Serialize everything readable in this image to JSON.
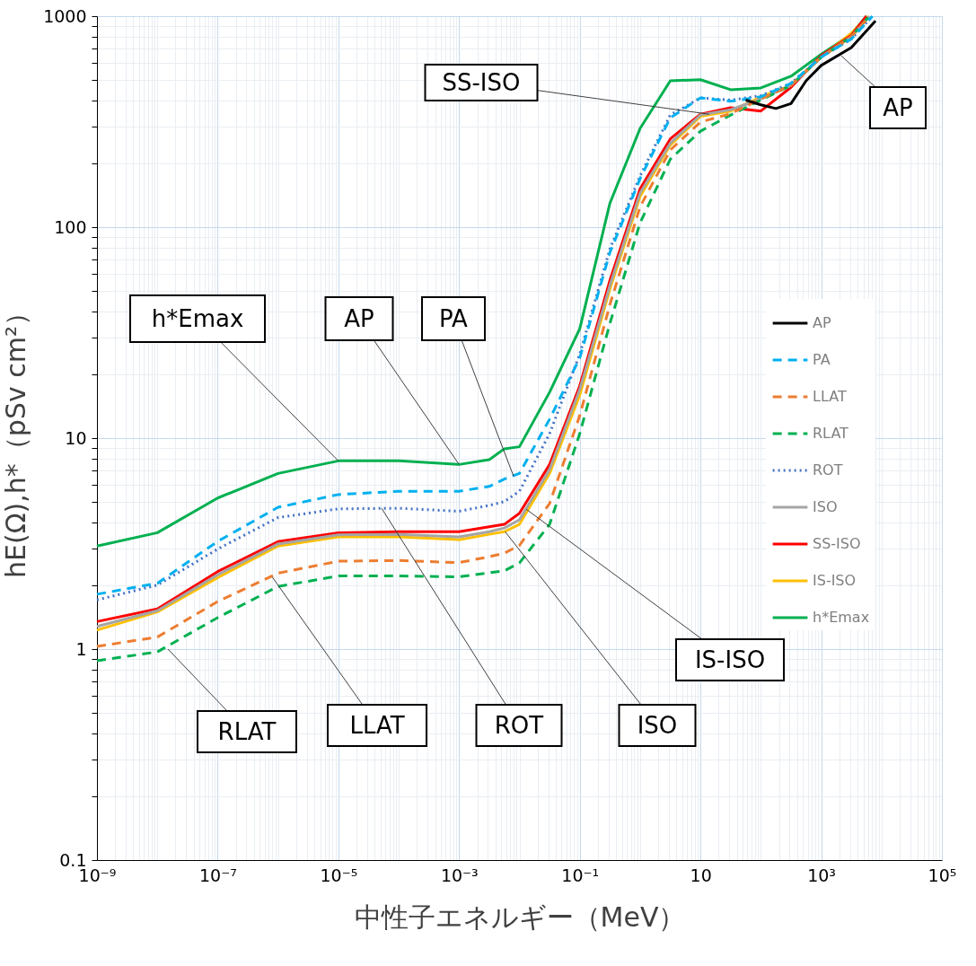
{
  "chart_data": {
    "type": "line",
    "xlabel": "中性子エネルギー（MeV）",
    "ylabel": "hE(Ω),h*（pSv cm²）",
    "log": "xy",
    "grid": true,
    "legend": "right",
    "xlim": [
      1e-09,
      100000
    ],
    "ylim": [
      0.1,
      1000
    ],
    "xticks": [
      {
        "value": 1e-09,
        "label": "10⁻⁹"
      },
      {
        "value": 1e-07,
        "label": "10⁻⁷"
      },
      {
        "value": 1e-05,
        "label": "10⁻⁵"
      },
      {
        "value": 0.001,
        "label": "10⁻³"
      },
      {
        "value": 0.1,
        "label": "10⁻¹"
      },
      {
        "value": 10,
        "label": "10"
      },
      {
        "value": 1000,
        "label": "10³"
      },
      {
        "value": 100000,
        "label": "10⁵"
      }
    ],
    "yticks": [
      0.1,
      1,
      10,
      100,
      1000
    ],
    "series": [
      {
        "name": "AP",
        "color": "#000000",
        "line_style": "solid",
        "x": [
          56.23,
          100,
          177.8,
          316.2,
          562.3,
          1000,
          3162,
          7943
        ],
        "values": [
          400,
          380,
          365,
          385,
          494,
          584,
          710,
          950
        ]
      },
      {
        "name": "PA",
        "color": "#00b0f0",
        "line_style": "dashed",
        "x": [
          1e-09,
          1e-08,
          1e-07,
          1e-06,
          1e-05,
          0.0001,
          0.001,
          0.003162,
          0.005623,
          0.01,
          0.03162,
          0.1,
          0.3162,
          1,
          3.162,
          10,
          31.62,
          100,
          316.2,
          1000,
          3162,
          7079
        ],
        "values": [
          1.82,
          2.05,
          3.24,
          4.7,
          5.4,
          5.6,
          5.6,
          5.9,
          6.4,
          6.8,
          12.3,
          24,
          76,
          170,
          330,
          410,
          395,
          415,
          480,
          640,
          780,
          1000
        ]
      },
      {
        "name": "LLAT",
        "color": "#ed7d31",
        "line_style": "dashed",
        "x": [
          1e-09,
          1e-08,
          1e-07,
          1e-06,
          1e-05,
          0.0001,
          0.001,
          0.003162,
          0.005623,
          0.01,
          0.03162,
          0.1,
          0.3162,
          1,
          3.162,
          10,
          31.62,
          100,
          316.2,
          1000,
          3162,
          6310
        ],
        "values": [
          1.03,
          1.14,
          1.68,
          2.29,
          2.61,
          2.63,
          2.57,
          2.74,
          2.85,
          3.1,
          4.9,
          12.8,
          43,
          125,
          232,
          315,
          345,
          405,
          470,
          640,
          800,
          1000
        ]
      },
      {
        "name": "RLAT",
        "color": "#00b050",
        "line_style": "dashed",
        "x": [
          1e-09,
          1e-08,
          1e-07,
          1e-06,
          1e-05,
          0.0001,
          0.001,
          0.003162,
          0.005623,
          0.01,
          0.03162,
          0.1,
          0.3162,
          1,
          3.162,
          10,
          31.62,
          100,
          316.2,
          1000,
          3162,
          6310
        ],
        "values": [
          0.88,
          0.97,
          1.41,
          1.98,
          2.22,
          2.22,
          2.2,
          2.3,
          2.35,
          2.56,
          3.9,
          10.5,
          35,
          105,
          210,
          285,
          340,
          400,
          470,
          640,
          800,
          1000
        ]
      },
      {
        "name": "ROT",
        "color": "#4472c4",
        "line_style": "dotted",
        "x": [
          1e-09,
          1e-08,
          1e-07,
          1e-06,
          1e-05,
          0.0001,
          0.001,
          0.003162,
          0.005623,
          0.01,
          0.03162,
          0.1,
          0.3162,
          1,
          3.162,
          10,
          31.62,
          100,
          316.2,
          1000,
          3162,
          7079
        ],
        "values": [
          1.71,
          2.01,
          2.98,
          4.2,
          4.62,
          4.65,
          4.5,
          4.8,
          5.0,
          5.6,
          10.5,
          25,
          79,
          175,
          340,
          410,
          400,
          420,
          480,
          640,
          780,
          1000
        ]
      },
      {
        "name": "ISO",
        "color": "#a5a5a5",
        "line_style": "solid",
        "x": [
          1e-09,
          1e-08,
          1e-07,
          1e-06,
          1e-05,
          0.0001,
          0.001,
          0.003162,
          0.005623,
          0.01,
          0.03162,
          0.1,
          0.3162,
          1,
          3.162,
          10,
          31.62,
          100,
          316.2,
          1000,
          3162,
          6310
        ],
        "values": [
          1.28,
          1.52,
          2.25,
          3.15,
          3.48,
          3.5,
          3.4,
          3.6,
          3.75,
          4.1,
          7.1,
          17,
          53,
          145,
          250,
          340,
          360,
          405,
          470,
          640,
          800,
          1000
        ]
      },
      {
        "name": "SS-ISO",
        "color": "#ff0000",
        "line_style": "solid",
        "x": [
          1e-09,
          1e-08,
          1e-07,
          1e-06,
          1e-05,
          0.0001,
          0.001,
          0.003162,
          0.005623,
          0.01,
          0.03162,
          0.1,
          0.3162,
          1,
          3.162,
          10,
          31.62,
          100,
          316.2,
          1000,
          3162,
          5623
        ],
        "values": [
          1.35,
          1.55,
          2.33,
          3.23,
          3.56,
          3.6,
          3.6,
          3.8,
          3.9,
          4.4,
          7.5,
          17.7,
          56,
          152,
          262,
          343,
          368,
          355,
          460,
          650,
          810,
          1000
        ]
      },
      {
        "name": "IS-ISO",
        "color": "#ffc000",
        "line_style": "solid",
        "x": [
          1e-09,
          1e-08,
          1e-07,
          1e-06,
          1e-05,
          0.0001,
          0.001,
          0.003162,
          0.005623,
          0.01,
          0.03162,
          0.1,
          0.3162,
          1,
          3.162,
          10,
          31.62,
          100,
          316.2,
          1000,
          3162,
          5957
        ],
        "values": [
          1.23,
          1.5,
          2.18,
          3.08,
          3.4,
          3.4,
          3.3,
          3.5,
          3.6,
          3.9,
          6.8,
          16,
          51,
          140,
          245,
          335,
          355,
          414,
          470,
          640,
          830,
          1000
        ]
      },
      {
        "name": "h*Emax",
        "color": "#00b050",
        "line_style": "solid",
        "x": [
          1e-09,
          1e-08,
          1e-07,
          1e-06,
          1e-05,
          0.0001,
          0.001,
          0.003162,
          0.005623,
          0.01,
          0.03162,
          0.1,
          0.3162,
          1,
          3.162,
          10,
          31.62,
          100,
          316.2,
          1000,
          3162,
          5623
        ],
        "values": [
          3.08,
          3.56,
          5.2,
          6.8,
          7.8,
          7.8,
          7.5,
          7.9,
          8.9,
          9.1,
          16.5,
          33,
          130,
          294,
          494,
          500,
          448,
          457,
          519,
          660,
          820,
          1000
        ]
      }
    ],
    "annotations": [
      {
        "text": "h*Emax",
        "x": 1e-05,
        "y": 7.8
      },
      {
        "text": "AP",
        "x": 0.001,
        "y": 7.5
      },
      {
        "text": "PA",
        "x": 0.008,
        "y": 6.6
      },
      {
        "text": "SS-ISO",
        "x": 14,
        "y": 343
      },
      {
        "text": "AP",
        "x": 2138,
        "y": 650
      },
      {
        "text": "RLAT",
        "x": 1.5e-08,
        "y": 1.0
      },
      {
        "text": "LLAT",
        "x": 8e-07,
        "y": 2.2
      },
      {
        "text": "ROT",
        "x": 5.2e-05,
        "y": 4.65
      },
      {
        "text": "ISO",
        "x": 0.0058,
        "y": 3.6
      },
      {
        "text": "IS-ISO",
        "x": 0.013,
        "y": 4.6
      }
    ]
  }
}
